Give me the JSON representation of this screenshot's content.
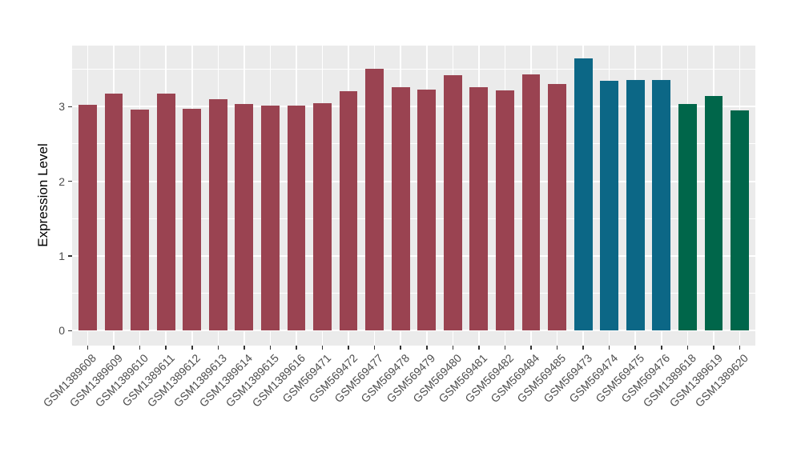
{
  "chart_data": {
    "type": "bar",
    "title": "",
    "xlabel": "",
    "ylabel": "Expression Level",
    "categories": [
      "GSM1389608",
      "GSM1389609",
      "GSM1389610",
      "GSM1389611",
      "GSM1389612",
      "GSM1389613",
      "GSM1389614",
      "GSM1389615",
      "GSM1389616",
      "GSM569471",
      "GSM569472",
      "GSM569477",
      "GSM569478",
      "GSM569479",
      "GSM569480",
      "GSM569481",
      "GSM569482",
      "GSM569484",
      "GSM569485",
      "GSM569473",
      "GSM569474",
      "GSM569475",
      "GSM569476",
      "GSM1389618",
      "GSM1389619",
      "GSM1389620"
    ],
    "values": [
      3.03,
      3.17,
      2.96,
      3.17,
      2.97,
      3.1,
      3.04,
      3.01,
      3.01,
      3.05,
      3.21,
      3.51,
      3.26,
      3.23,
      3.42,
      3.26,
      3.22,
      3.43,
      3.3,
      3.65,
      3.35,
      3.36,
      3.36,
      3.04,
      3.14,
      2.95
    ],
    "bar_groups": [
      0,
      0,
      0,
      0,
      0,
      0,
      0,
      0,
      0,
      0,
      0,
      0,
      0,
      0,
      0,
      0,
      0,
      0,
      0,
      1,
      1,
      1,
      1,
      2,
      2,
      2
    ],
    "group_colors": [
      "#9A4351",
      "#0C6786",
      "#00664A"
    ],
    "ylim": [
      0,
      3.82
    ],
    "yticks": [
      0,
      1,
      2,
      3
    ],
    "yticks_minor": [
      0.5,
      1.5,
      2.5,
      3.5
    ],
    "grid": "on",
    "legend_position": "none",
    "panel_bg_color": "#EBEBEB",
    "grid_color": "#FFFFFF",
    "tick_color": "#333333",
    "axis_text_color": "#4D4D4D"
  }
}
